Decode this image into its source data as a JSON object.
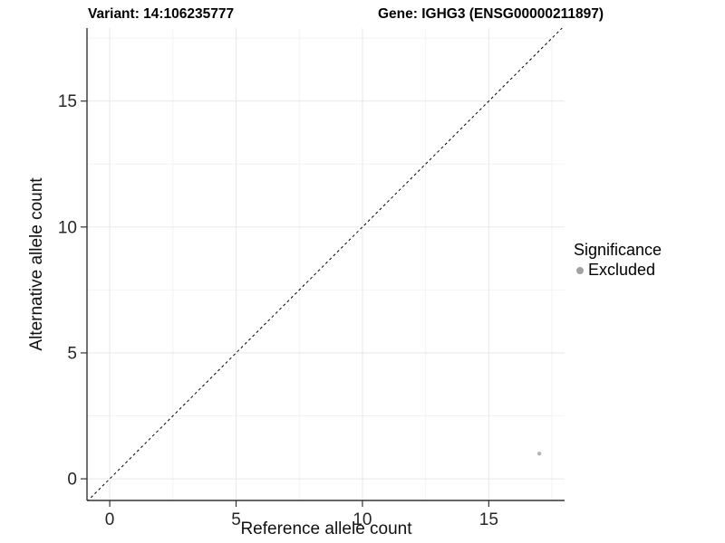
{
  "header": {
    "variant_title": "Variant: 14:106235777",
    "gene_title": "Gene: IGHG3 (ENSG00000211897)"
  },
  "chart_data": {
    "type": "scatter",
    "title_left": "Variant: 14:106235777",
    "title_right": "Gene: IGHG3 (ENSG00000211897)",
    "xlabel": "Reference allele count",
    "ylabel": "Alternative allele count",
    "xlim": [
      -0.9,
      18.0
    ],
    "ylim": [
      -0.86,
      17.9
    ],
    "x_ticks": [
      0,
      5,
      10,
      15
    ],
    "y_ticks": [
      0,
      5,
      10,
      15
    ],
    "x_minor_gridlines": [
      2.5,
      7.5,
      12.5,
      17.5
    ],
    "y_minor_gridlines": [
      2.5,
      7.5,
      12.5,
      17.5
    ],
    "grid": true,
    "legend_position": "right",
    "points": [
      {
        "x": 17,
        "y": 1,
        "series": "Excluded"
      }
    ],
    "reference_line": {
      "slope": 1,
      "intercept": 0,
      "style": "dashed"
    },
    "legend": {
      "title": "Significance",
      "entries": [
        {
          "label": "Excluded",
          "color": "#a2a2a2"
        }
      ]
    },
    "colors": {
      "point": "#b4b4b4",
      "legend_key": "#a2a2a2",
      "axis_line": "#333333",
      "tick_text": "#262626",
      "grid_major": "#e7e7e7",
      "grid_minor": "#f2f2f2",
      "reference_line": "#000000"
    }
  }
}
